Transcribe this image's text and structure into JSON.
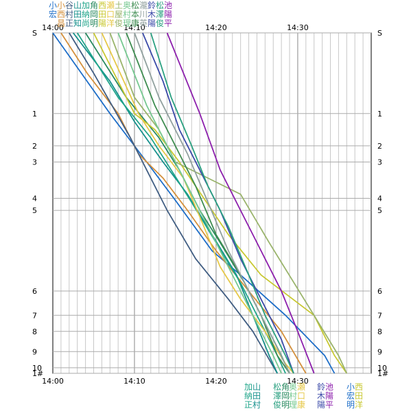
{
  "chart_data": {
    "type": "line",
    "x_ticks": [
      "14:00",
      "14:10",
      "14:20",
      "14:30"
    ],
    "x_range_minutes": [
      0,
      39
    ],
    "y_labels": [
      "S",
      "1",
      "2",
      "3",
      "4",
      "5",
      "6",
      "7",
      "8",
      "9",
      "10",
      "1#"
    ],
    "y_range_km": [
      0,
      42.195
    ],
    "y_positions_km": [
      0,
      10,
      14,
      16,
      20.5,
      22,
      32,
      35,
      37,
      39.5,
      41.5,
      42.195
    ],
    "grid": "on",
    "series": [
      {
        "top": "小宏",
        "color": "#1e6ec8",
        "values": [
          [
            0,
            0
          ],
          [
            3.5,
            5
          ],
          [
            7,
            10
          ],
          [
            11.5,
            16
          ],
          [
            15.2,
            21
          ],
          [
            19.5,
            27
          ],
          [
            23,
            30
          ],
          [
            28.5,
            35
          ],
          [
            33.3,
            40
          ],
          [
            34.5,
            42.195
          ]
        ]
      },
      {
        "top": "小西昌",
        "color": "#d4903c",
        "values": [
          [
            1,
            0
          ],
          [
            4.2,
            5
          ],
          [
            8,
            10
          ],
          [
            10.5,
            15
          ],
          [
            13.5,
            18
          ],
          [
            16.5,
            22
          ],
          [
            20,
            27
          ],
          [
            24,
            32
          ],
          [
            28,
            37
          ],
          [
            31,
            42.195
          ]
        ]
      },
      {
        "top": "谷村正",
        "color": "#405d82",
        "values": [
          [
            2,
            0
          ],
          [
            5,
            5
          ],
          [
            9.5,
            13
          ],
          [
            11.5,
            17
          ],
          [
            14,
            22
          ],
          [
            17.5,
            28
          ],
          [
            21.5,
            33
          ],
          [
            24.5,
            37
          ],
          [
            26.8,
            41
          ],
          [
            27.5,
            42.195
          ]
        ]
      },
      {
        "top": "山田知",
        "color": "#16908c",
        "values": [
          [
            2.5,
            0
          ],
          [
            7,
            6
          ],
          [
            10,
            11
          ],
          [
            13.5,
            16
          ],
          [
            16.5,
            20
          ],
          [
            19.5,
            25
          ],
          [
            22.5,
            30
          ],
          [
            24.5,
            35
          ],
          [
            26.5,
            40
          ],
          [
            27.5,
            42.195
          ]
        ]
      },
      {
        "top": "加納尚",
        "color": "#20a58a",
        "values": [
          [
            3,
            0
          ],
          [
            8,
            8
          ],
          [
            12,
            13
          ],
          [
            14.5,
            17
          ],
          [
            17,
            21
          ],
          [
            20,
            26
          ],
          [
            23,
            31
          ],
          [
            25.5,
            36
          ],
          [
            27.5,
            40
          ],
          [
            28.5,
            42.195
          ]
        ]
      },
      {
        "top": "角岡明",
        "color": "#2a8a60",
        "values": [
          [
            4,
            0
          ],
          [
            9,
            8
          ],
          [
            13,
            13
          ],
          [
            15.5,
            17
          ],
          [
            18,
            22
          ],
          [
            20.5,
            26
          ],
          [
            23.5,
            31
          ],
          [
            26,
            36
          ],
          [
            28,
            40
          ],
          [
            29,
            42.195
          ]
        ]
      },
      {
        "top": "西田陽",
        "color": "#c8c832",
        "values": [
          [
            5,
            0
          ],
          [
            10,
            10
          ],
          [
            12.5,
            12
          ],
          [
            15.5,
            16
          ],
          [
            18.5,
            20.5
          ],
          [
            21.5,
            25
          ],
          [
            25.5,
            30
          ],
          [
            32,
            35
          ],
          [
            34.5,
            40
          ],
          [
            36,
            42.195
          ]
        ]
      },
      {
        "top": "瀬口洋",
        "color": "#e6c848",
        "values": [
          [
            6,
            0
          ],
          [
            10.5,
            10
          ],
          [
            13,
            14
          ],
          [
            16,
            18
          ],
          [
            18.5,
            24
          ],
          [
            20.5,
            29
          ],
          [
            23,
            33
          ],
          [
            26,
            37
          ],
          [
            28.5,
            41
          ],
          [
            29.5,
            42.195
          ]
        ]
      },
      {
        "top": "土屋俊",
        "color": "#9ab46c",
        "values": [
          [
            7,
            0
          ],
          [
            10,
            8
          ],
          [
            13,
            12
          ],
          [
            15,
            16
          ],
          [
            19,
            18
          ],
          [
            23,
            20
          ],
          [
            26.5,
            26
          ],
          [
            32,
            35
          ],
          [
            35,
            40
          ],
          [
            36,
            42.195
          ]
        ]
      },
      {
        "top": "奥村理",
        "color": "#76c890",
        "values": [
          [
            8,
            0
          ],
          [
            11.5,
            9
          ],
          [
            14.5,
            15
          ],
          [
            17,
            20
          ],
          [
            19.5,
            25
          ],
          [
            22.5,
            31
          ],
          [
            25,
            36
          ],
          [
            27,
            40
          ],
          [
            28,
            42.195
          ]
        ]
      },
      {
        "top": "松本康",
        "color": "#3e8c50",
        "values": [
          [
            9,
            0
          ],
          [
            12.5,
            9
          ],
          [
            15,
            14
          ],
          [
            17.5,
            19
          ],
          [
            20,
            25
          ],
          [
            23,
            30
          ],
          [
            25.5,
            35
          ],
          [
            27.5,
            40
          ],
          [
            29,
            42.195
          ]
        ]
      },
      {
        "top": "瀧川英",
        "color": "#90a09e",
        "values": [
          [
            10,
            0
          ],
          [
            13,
            8
          ],
          [
            16.5,
            15
          ],
          [
            19,
            21
          ],
          [
            21.5,
            27
          ],
          [
            24.5,
            33
          ],
          [
            27,
            38
          ],
          [
            29,
            42.195
          ]
        ]
      },
      {
        "top": "鈴木陽",
        "color": "#3b4aa8",
        "values": [
          [
            11,
            0
          ],
          [
            13.5,
            6
          ],
          [
            15.5,
            12
          ],
          [
            18,
            17
          ],
          [
            20.5,
            22
          ],
          [
            23,
            28
          ],
          [
            25.5,
            33
          ],
          [
            28,
            38
          ],
          [
            29.5,
            42.195
          ]
        ]
      },
      {
        "top": "松澤俊",
        "color": "#2aa080",
        "values": [
          [
            12,
            0
          ],
          [
            14.5,
            8
          ],
          [
            17,
            14
          ],
          [
            19,
            19
          ],
          [
            21.5,
            24
          ],
          [
            24,
            30
          ],
          [
            26,
            35
          ],
          [
            28.5,
            40
          ],
          [
            29.5,
            42.195
          ]
        ]
      },
      {
        "top": "池陽平",
        "color": "#8c1eac",
        "values": [
          [
            14,
            0
          ],
          [
            18,
            10
          ],
          [
            20.5,
            17
          ],
          [
            23,
            22
          ],
          [
            25.5,
            27
          ],
          [
            28,
            32
          ],
          [
            30,
            37
          ],
          [
            32,
            42.195
          ]
        ]
      }
    ],
    "bottom_labels": [
      {
        "text": "加納正",
        "color": "#20a58a"
      },
      {
        "text": "山田村",
        "color": "#16908c"
      },
      {
        "text": "松澤俊",
        "color": "#2aa080"
      },
      {
        "text": "角岡明",
        "color": "#2a8a60"
      },
      {
        "text": "奥村理",
        "color": "#76c890"
      },
      {
        "text": "瀬口康",
        "color": "#e6c848"
      },
      {
        "text": "鈴木陽",
        "color": "#3b4aa8"
      },
      {
        "text": "池陽平",
        "color": "#8c1eac"
      },
      {
        "text": "小宏明",
        "color": "#1e6ec8"
      },
      {
        "text": "西田洋",
        "color": "#c8c832"
      }
    ]
  }
}
